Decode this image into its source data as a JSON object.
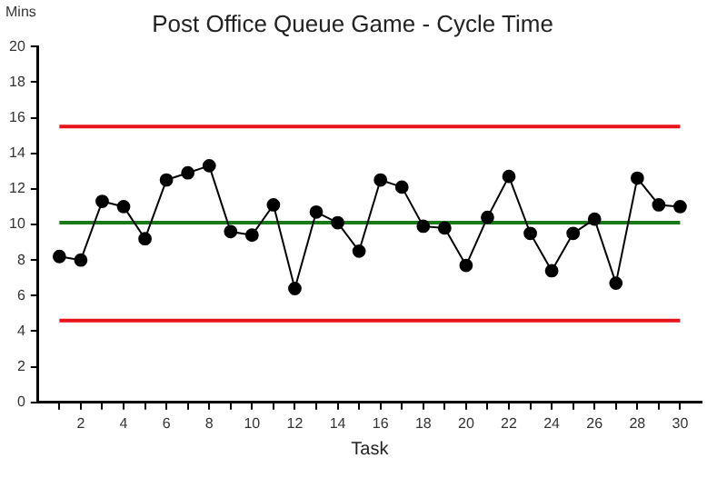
{
  "chart_data": {
    "type": "line",
    "title": "Post Office Queue Game - Cycle Time",
    "xlabel": "Task",
    "ylabel": "Mins",
    "x": [
      1,
      2,
      3,
      4,
      5,
      6,
      7,
      8,
      9,
      10,
      11,
      12,
      13,
      14,
      15,
      16,
      17,
      18,
      19,
      20,
      21,
      22,
      23,
      24,
      25,
      26,
      27,
      28,
      29,
      30
    ],
    "series": [
      {
        "color": "#000000",
        "values": [
          8.2,
          8.0,
          11.3,
          11.0,
          9.2,
          12.5,
          12.9,
          13.3,
          9.6,
          9.4,
          11.1,
          6.4,
          10.7,
          10.1,
          8.5,
          12.5,
          12.1,
          9.9,
          9.8,
          7.7,
          10.4,
          12.7,
          9.5,
          7.4,
          9.5,
          10.3,
          6.7,
          12.6,
          11.1,
          11.0
        ]
      }
    ],
    "marker": "circle",
    "line_style": "solid",
    "grid": false,
    "legend": false,
    "xlim": [
      0,
      31
    ],
    "xticks": [
      {
        "value": 1,
        "label": null
      },
      2,
      {
        "value": 3,
        "label": null
      },
      4,
      {
        "value": 5,
        "label": null
      },
      6,
      {
        "value": 7,
        "label": null
      },
      8,
      {
        "value": 9,
        "label": null
      },
      10,
      {
        "value": 11,
        "label": null
      },
      12,
      {
        "value": 13,
        "label": null
      },
      14,
      {
        "value": 15,
        "label": null
      },
      16,
      {
        "value": 17,
        "label": null
      },
      18,
      {
        "value": 19,
        "label": null
      },
      20,
      {
        "value": 21,
        "label": null
      },
      22,
      {
        "value": 23,
        "label": null
      },
      24,
      {
        "value": 25,
        "label": null
      },
      26,
      {
        "value": 27,
        "label": null
      },
      28,
      {
        "value": 29,
        "label": null
      },
      30
    ],
    "ylim": [
      0,
      20
    ],
    "yticks": [
      0,
      2,
      4,
      6,
      8,
      10,
      12,
      14,
      16,
      18,
      20
    ],
    "ref_lines": [
      {
        "axis": "y",
        "value": 15.5,
        "color": "#e8121a"
      },
      {
        "axis": "y",
        "value": 10.1,
        "color": "#1a7a1a"
      },
      {
        "axis": "y",
        "value": 4.6,
        "color": "#e8121a"
      }
    ]
  }
}
